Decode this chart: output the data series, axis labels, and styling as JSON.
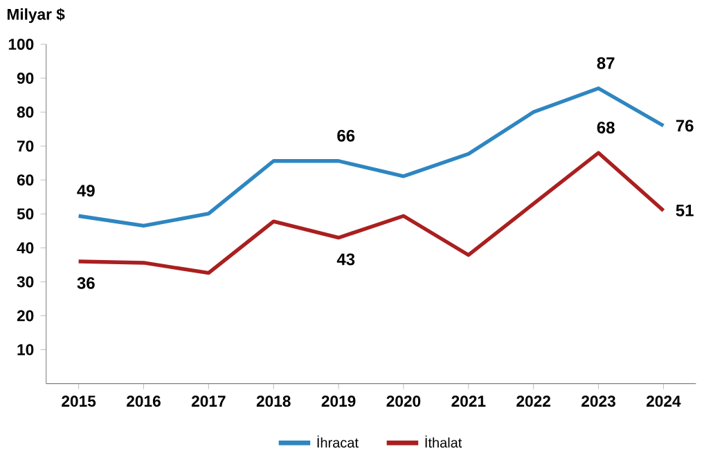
{
  "chart_data": {
    "type": "line",
    "ylabel": "Milyar $",
    "categories": [
      "2015",
      "2016",
      "2017",
      "2018",
      "2019",
      "2020",
      "2021",
      "2022",
      "2023",
      "2024"
    ],
    "ylim": [
      0,
      100
    ],
    "yticks": [
      10,
      20,
      30,
      40,
      50,
      60,
      70,
      80,
      90,
      100
    ],
    "grid": false,
    "legend": "bottom",
    "marker": "none",
    "line_style": "solid",
    "series": [
      {
        "name": "İhracat",
        "color": "#2e86c1",
        "values": [
          49.4,
          46.5,
          50.1,
          65.6,
          65.6,
          61.1,
          67.7,
          80,
          87,
          76
        ],
        "value_labels": [
          "49",
          null,
          null,
          null,
          "66",
          null,
          null,
          null,
          "87",
          "76"
        ]
      },
      {
        "name": "İthalat",
        "color": "#aa1f1f",
        "values": [
          36,
          35.6,
          32.6,
          47.8,
          43,
          49.4,
          37.9,
          53,
          68,
          51
        ],
        "value_labels": [
          "36",
          null,
          null,
          null,
          "43",
          null,
          null,
          null,
          "68",
          "51"
        ]
      }
    ]
  }
}
